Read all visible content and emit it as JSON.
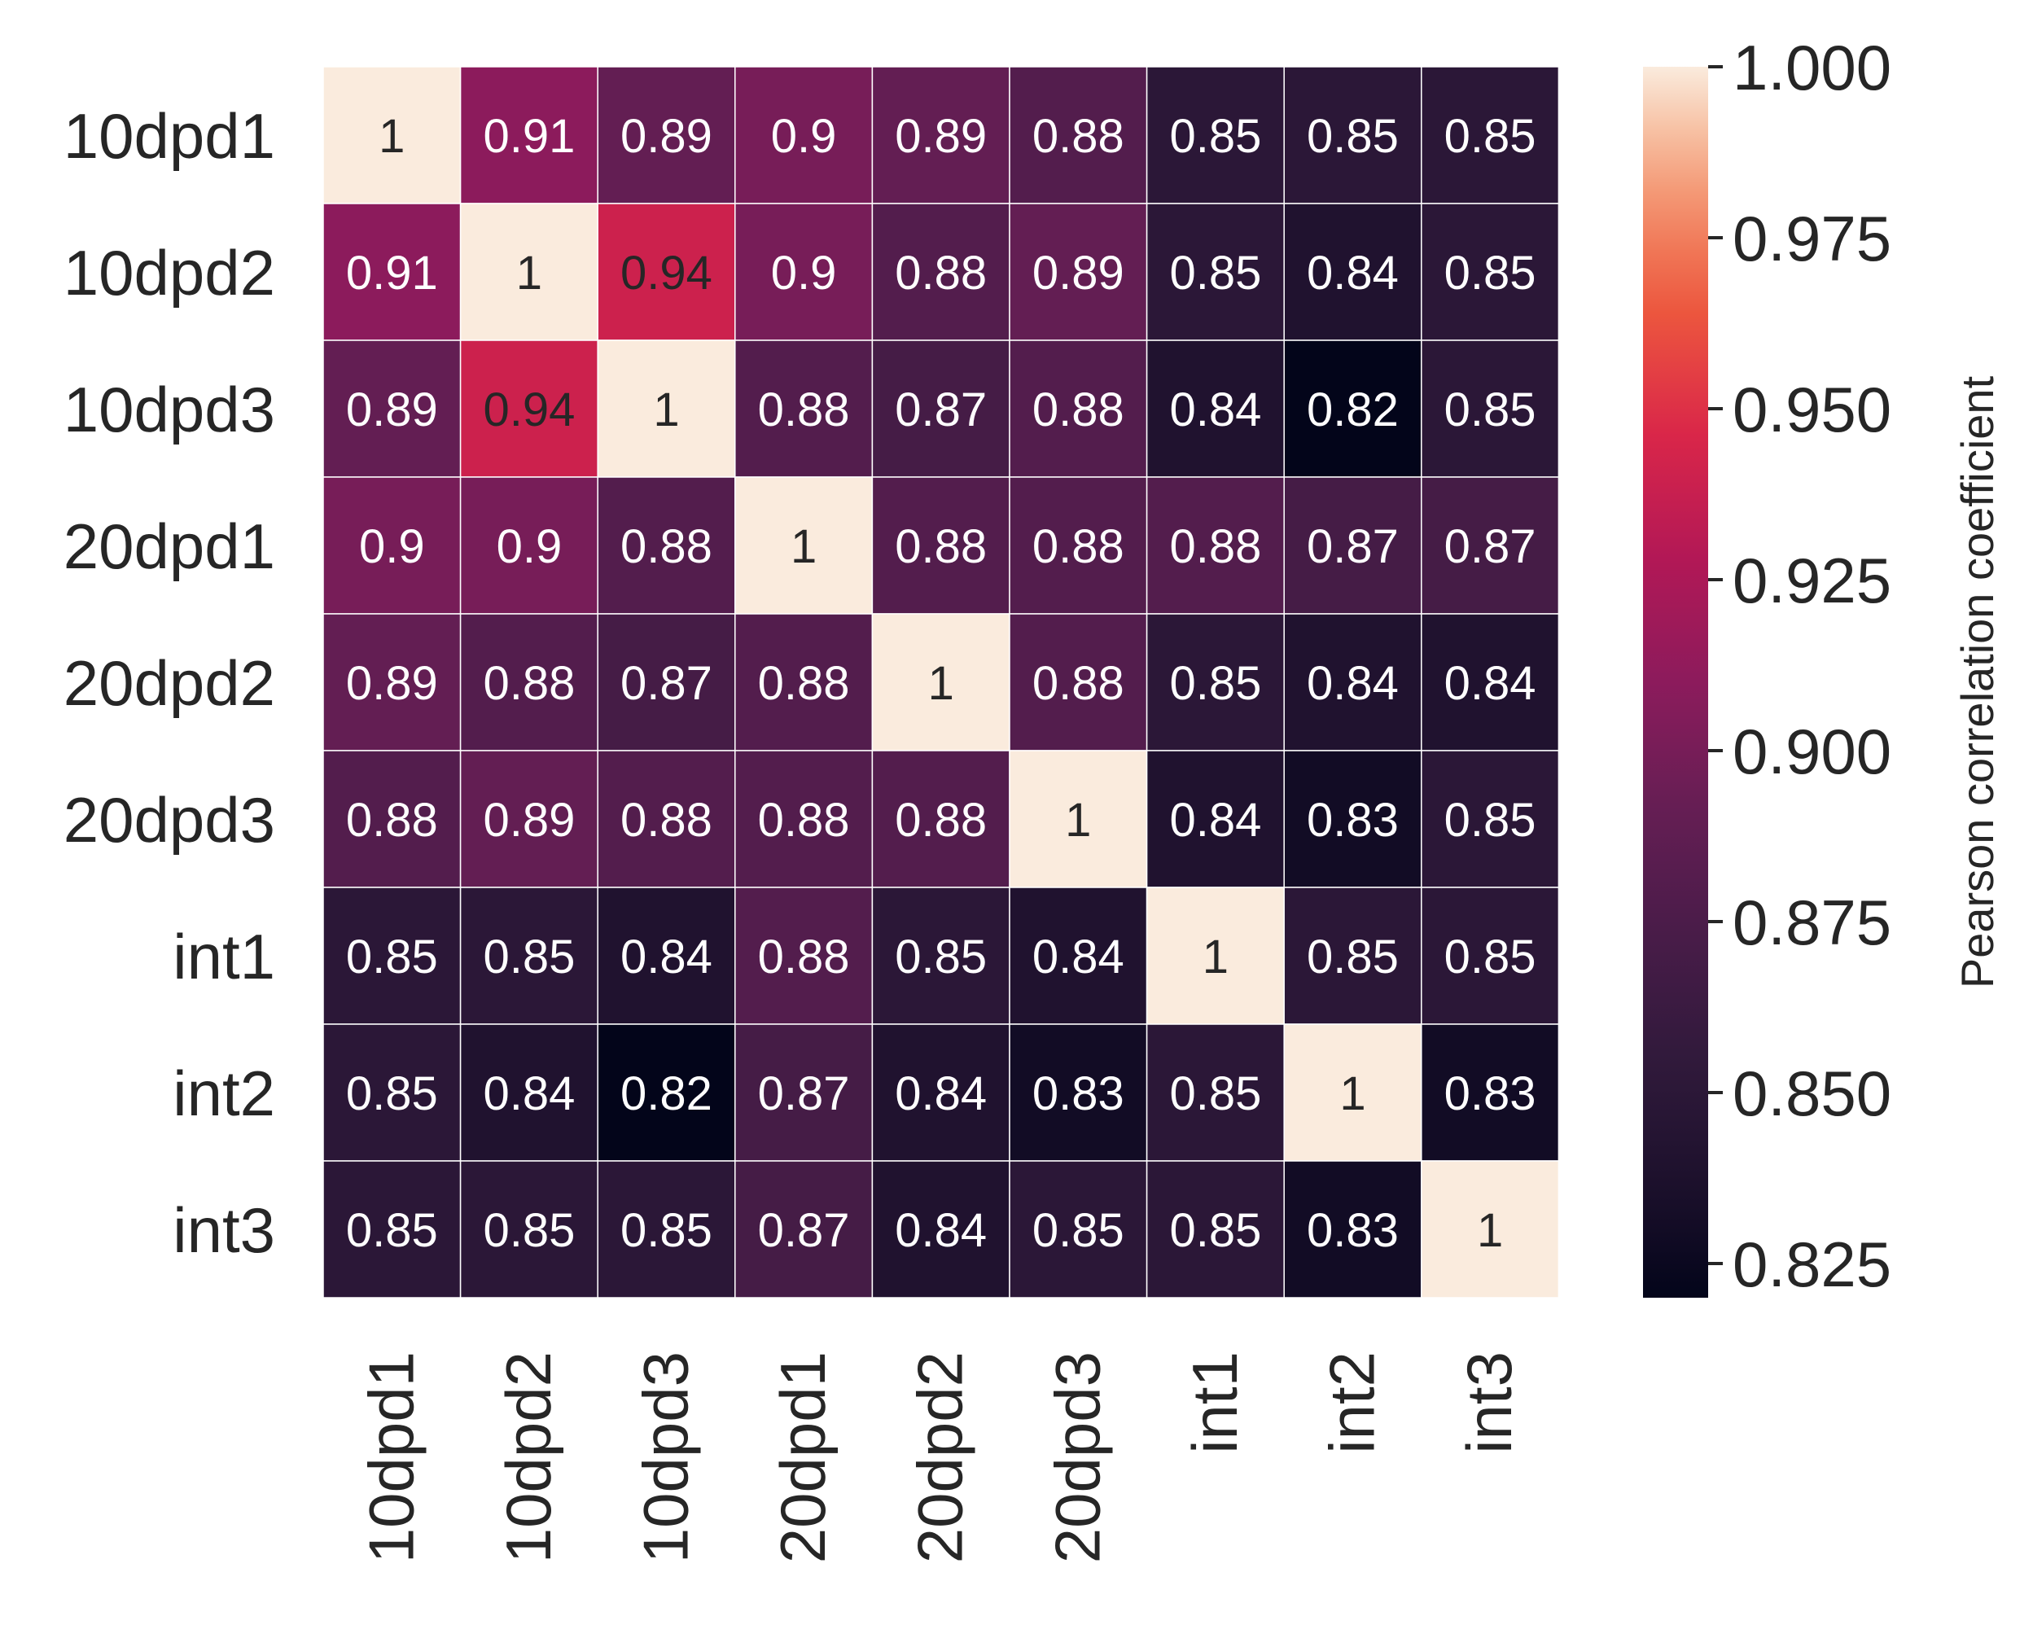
{
  "chart_data": {
    "type": "heatmap",
    "rows": [
      "10dpd1",
      "10dpd2",
      "10dpd3",
      "20dpd1",
      "20dpd2",
      "20dpd3",
      "int1",
      "int2",
      "int3"
    ],
    "columns": [
      "10dpd1",
      "10dpd2",
      "10dpd3",
      "20dpd1",
      "20dpd2",
      "20dpd3",
      "int1",
      "int2",
      "int3"
    ],
    "values": [
      [
        1,
        0.91,
        0.89,
        0.9,
        0.89,
        0.88,
        0.85,
        0.85,
        0.85
      ],
      [
        0.91,
        1,
        0.94,
        0.9,
        0.88,
        0.89,
        0.85,
        0.84,
        0.85
      ],
      [
        0.89,
        0.94,
        1,
        0.88,
        0.87,
        0.88,
        0.84,
        0.82,
        0.85
      ],
      [
        0.9,
        0.9,
        0.88,
        1,
        0.88,
        0.88,
        0.88,
        0.87,
        0.87
      ],
      [
        0.89,
        0.88,
        0.87,
        0.88,
        1,
        0.88,
        0.85,
        0.84,
        0.84
      ],
      [
        0.88,
        0.89,
        0.88,
        0.88,
        0.88,
        1,
        0.84,
        0.83,
        0.85
      ],
      [
        0.85,
        0.85,
        0.84,
        0.88,
        0.85,
        0.84,
        1,
        0.85,
        0.85
      ],
      [
        0.85,
        0.84,
        0.82,
        0.87,
        0.84,
        0.83,
        0.85,
        1,
        0.83
      ],
      [
        0.85,
        0.85,
        0.85,
        0.87,
        0.84,
        0.85,
        0.85,
        0.83,
        1
      ]
    ],
    "vmin": 0.82,
    "vmax": 1.0,
    "colormap": "rocket",
    "colorbar": {
      "label": "Pearson correlation coefficient",
      "ticks": [
        1.0,
        0.975,
        0.95,
        0.925,
        0.9,
        0.875,
        0.85,
        0.825
      ],
      "tick_labels": [
        "1.000",
        "0.975",
        "0.950",
        "0.925",
        "0.900",
        "0.875",
        "0.850",
        "0.825"
      ]
    },
    "annotations": true,
    "title": "",
    "xlabel": "",
    "ylabel": ""
  },
  "colors": {
    "text_dark": "#262626",
    "cell_border": "#ffffff"
  }
}
